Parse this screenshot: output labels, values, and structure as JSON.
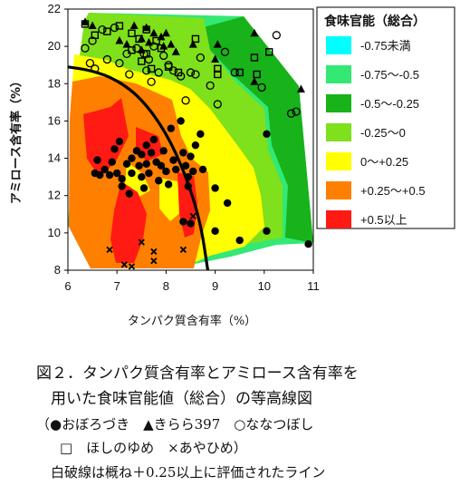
{
  "chart_data": {
    "type": "scatter",
    "subtype": "contour-scatter",
    "xlabel": "タンパク質含有率（%）",
    "ylabel": "アミロース含有率（%）",
    "xlim": [
      6,
      11
    ],
    "ylim": [
      8,
      22
    ],
    "xticks": [
      "6",
      "7",
      "8",
      "9",
      "10",
      "11"
    ],
    "yticks": [
      "8",
      "10",
      "12",
      "14",
      "16",
      "18",
      "20",
      "22"
    ],
    "grid": false,
    "legend": {
      "title": "食味官能（総合）",
      "position": "right",
      "entries": [
        {
          "label": "-0.75未満",
          "color": "#00ffff"
        },
        {
          "label": "-0.75～-0.5",
          "color": "#33e873"
        },
        {
          "label": "-0.5～-0.25",
          "color": "#18b21a"
        },
        {
          "label": "-0.25～0",
          "color": "#7fe01c"
        },
        {
          "label": "0～+0.25",
          "color": "#ffff00"
        },
        {
          "label": "+0.25～+0.5",
          "color": "#ff7f00"
        },
        {
          "label": "+0.5以上",
          "color": "#ff1a14"
        }
      ]
    },
    "boundary_curve": {
      "description": "白破線は概ね＋0.25以上に評価されたライン",
      "points": [
        [
          6,
          18.9
        ],
        [
          6.5,
          18.7
        ],
        [
          7,
          18.2
        ],
        [
          7.5,
          17.2
        ],
        [
          8,
          15.4
        ],
        [
          8.4,
          13.1
        ],
        [
          8.7,
          10.6
        ],
        [
          8.85,
          8
        ]
      ]
    },
    "series": [
      {
        "name": "おぼろづき",
        "marker": "filled-circle",
        "points": [
          [
            6.55,
            13.2
          ],
          [
            6.6,
            13.9
          ],
          [
            6.65,
            13.1
          ],
          [
            6.75,
            13.4
          ],
          [
            6.85,
            13.1
          ],
          [
            6.9,
            13.8
          ],
          [
            6.95,
            14.5
          ],
          [
            7.0,
            13.2
          ],
          [
            7.05,
            14.9
          ],
          [
            7.1,
            12.5
          ],
          [
            7.1,
            12.9
          ],
          [
            7.2,
            13.7
          ],
          [
            7.25,
            12.1
          ],
          [
            7.3,
            14.0
          ],
          [
            7.3,
            13.2
          ],
          [
            7.4,
            14.4
          ],
          [
            7.45,
            13.6
          ],
          [
            7.5,
            14.2
          ],
          [
            7.5,
            13.0
          ],
          [
            7.55,
            12.4
          ],
          [
            7.6,
            14.7
          ],
          [
            7.6,
            13.7
          ],
          [
            7.65,
            13.2
          ],
          [
            7.7,
            14.3
          ],
          [
            7.75,
            15.0
          ],
          [
            7.8,
            13.8
          ],
          [
            7.85,
            12.8
          ],
          [
            7.9,
            13.6
          ],
          [
            7.95,
            14.4
          ],
          [
            8.0,
            13.3
          ],
          [
            8.05,
            12.6
          ],
          [
            8.1,
            15.6
          ],
          [
            8.15,
            13.9
          ],
          [
            8.2,
            13.4
          ],
          [
            8.3,
            16.0
          ],
          [
            8.35,
            14.3
          ],
          [
            8.4,
            13.6
          ],
          [
            8.45,
            13.0
          ],
          [
            8.5,
            14.1
          ],
          [
            8.45,
            12.5
          ],
          [
            8.55,
            13.3
          ],
          [
            8.6,
            14.7
          ],
          [
            8.5,
            10.5
          ],
          [
            8.35,
            10.6
          ],
          [
            8.7,
            15.3
          ],
          [
            8.75,
            13.4
          ],
          [
            9.0,
            12.4
          ],
          [
            9.0,
            10.1
          ],
          [
            9.25,
            11.6
          ],
          [
            9.5,
            9.6
          ],
          [
            10.05,
            10.1
          ],
          [
            10.05,
            15.3
          ],
          [
            10.9,
            9.4
          ]
        ]
      },
      {
        "name": "きらら397",
        "marker": "filled-triangle",
        "points": [
          [
            6.35,
            21.3
          ],
          [
            6.5,
            21.1
          ],
          [
            7.05,
            20.3
          ],
          [
            7.2,
            20.1
          ],
          [
            7.35,
            21.1
          ],
          [
            7.5,
            20.4
          ],
          [
            7.5,
            19.8
          ],
          [
            7.6,
            21.0
          ],
          [
            7.65,
            20.2
          ],
          [
            7.75,
            20.7
          ],
          [
            7.9,
            20.5
          ],
          [
            7.95,
            20.0
          ],
          [
            8.0,
            20.7
          ],
          [
            8.1,
            20.1
          ],
          [
            8.2,
            19.7
          ],
          [
            8.55,
            20.1
          ],
          [
            9.0,
            19.3
          ],
          [
            9.05,
            20.1
          ],
          [
            9.8,
            20.7
          ],
          [
            9.8,
            18.1
          ],
          [
            10.75,
            17.7
          ]
        ]
      },
      {
        "name": "ななつぼし",
        "marker": "open-circle",
        "points": [
          [
            6.35,
            19.9
          ],
          [
            6.45,
            19.1
          ],
          [
            6.5,
            20.3
          ],
          [
            6.55,
            18.8
          ],
          [
            6.7,
            20.9
          ],
          [
            6.8,
            19.3
          ],
          [
            6.95,
            21.0
          ],
          [
            7.05,
            19.1
          ],
          [
            7.2,
            19.6
          ],
          [
            7.4,
            19.9
          ],
          [
            7.55,
            19.6
          ],
          [
            7.6,
            18.7
          ],
          [
            7.65,
            19.3
          ],
          [
            7.75,
            20.0
          ],
          [
            7.85,
            18.6
          ],
          [
            7.95,
            19.5
          ],
          [
            8.05,
            19.0
          ],
          [
            8.15,
            18.7
          ],
          [
            8.3,
            18.4
          ],
          [
            8.4,
            17.1
          ],
          [
            8.5,
            18.6
          ],
          [
            8.6,
            18.5
          ],
          [
            8.7,
            19.4
          ],
          [
            9.05,
            16.9
          ],
          [
            9.2,
            19.7
          ],
          [
            9.95,
            17.8
          ],
          [
            10.25,
            20.6
          ],
          [
            10.55,
            16.4
          ],
          [
            10.65,
            16.5
          ],
          [
            7.7,
            18.1
          ],
          [
            7.25,
            18.5
          ],
          [
            9.4,
            18.6
          ],
          [
            8.9,
            17.9
          ]
        ]
      },
      {
        "name": "ほしのゆめ",
        "marker": "open-square",
        "points": [
          [
            6.35,
            21.2
          ],
          [
            6.55,
            20.6
          ],
          [
            6.8,
            20.8
          ],
          [
            7.05,
            21.1
          ],
          [
            7.3,
            20.7
          ],
          [
            7.3,
            19.8
          ],
          [
            7.45,
            20.4
          ],
          [
            7.5,
            19.2
          ],
          [
            7.6,
            20.9
          ],
          [
            7.6,
            19.6
          ],
          [
            7.7,
            18.8
          ],
          [
            7.8,
            20.3
          ],
          [
            7.9,
            19.9
          ],
          [
            8.05,
            18.9
          ],
          [
            8.25,
            18.6
          ],
          [
            8.6,
            20.4
          ],
          [
            9.05,
            18.8
          ],
          [
            9.05,
            18.5
          ],
          [
            9.5,
            18.6
          ],
          [
            9.85,
            18.5
          ],
          [
            9.8,
            19.4
          ],
          [
            10.1,
            19.7
          ]
        ]
      },
      {
        "name": "あやひめ",
        "marker": "x-mark",
        "points": [
          [
            6.85,
            9.1
          ],
          [
            7.15,
            8.3
          ],
          [
            7.3,
            8.2
          ],
          [
            7.5,
            9.5
          ],
          [
            7.75,
            9.0
          ],
          [
            7.75,
            8.5
          ],
          [
            8.35,
            9.1
          ],
          [
            8.55,
            10.9
          ]
        ]
      }
    ]
  },
  "caption": {
    "line1": "図２．タンパク質含有率とアミロース含有率を",
    "line2": "用いた食味官能値（総合）の等高線図",
    "line3": "（●おぼろづき　▲きらら397　○ななつぼし",
    "line4": "□　ほしのゆめ　×あやひめ）",
    "line5": "白破線は概ね＋0.25以上に評価されたライン"
  }
}
